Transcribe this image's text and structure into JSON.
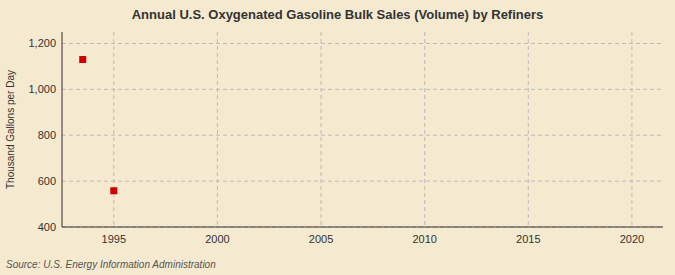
{
  "chart_data": {
    "type": "scatter",
    "title": "Annual U.S. Oxygenated Gasoline Bulk Sales (Volume) by Refiners",
    "y_label": "Thousand Gallons per Day",
    "annotations": [
      "Source: U.S. Energy Information Administration"
    ],
    "x": [
      1993.5,
      1995
    ],
    "values": [
      1130,
      558
    ],
    "color": "#cc0000",
    "marker": "square",
    "xlim": [
      1992.5,
      2021.5
    ],
    "ylim": [
      400,
      1250
    ],
    "xticks": [
      1995,
      2000,
      2005,
      2010,
      2015,
      2020
    ],
    "yticks": [
      400,
      600,
      800,
      {
        "value": 1000,
        "label": "1,000"
      },
      {
        "value": 1200,
        "label": "1,200"
      }
    ],
    "grid": true
  }
}
